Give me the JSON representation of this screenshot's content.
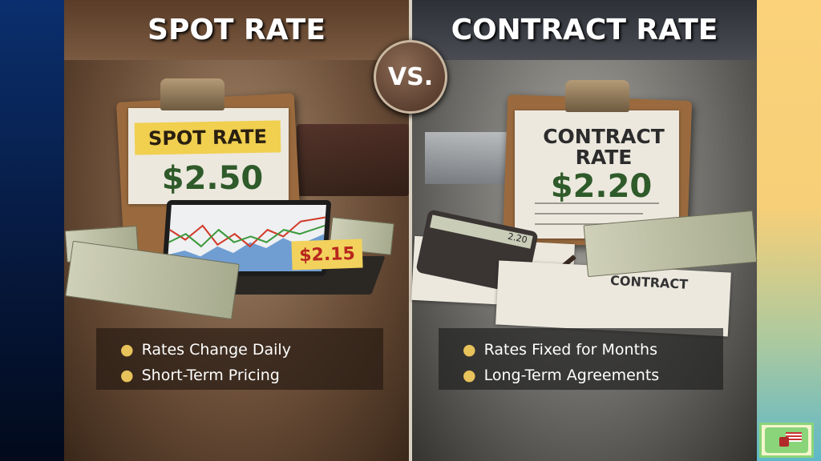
{
  "left": {
    "header": "SPOT RATE",
    "clipboard_label": "SPOT RATE",
    "price": "$2.50",
    "price_tag": "$2.15",
    "bullets": [
      "Rates Change Daily",
      "Short-Term Pricing"
    ]
  },
  "versus": "VS.",
  "right": {
    "header": "CONTRACT RATE",
    "clipboard_title_line1": "CONTRACT",
    "clipboard_title_line2": "RATE",
    "price": "$2.20",
    "calculator_display": "2.20",
    "document_label": "CONTRACT",
    "bullets": [
      "Rates Fixed for Months",
      "Long-Term Agreements"
    ]
  },
  "colors": {
    "bullet_dot": "#e8c25a",
    "price_green": "#2f5a2a",
    "spot_label_bg": "#f1cf4f",
    "tag_red": "#b8261e"
  },
  "logo": {
    "icon": "usa-map-truck-logo"
  }
}
